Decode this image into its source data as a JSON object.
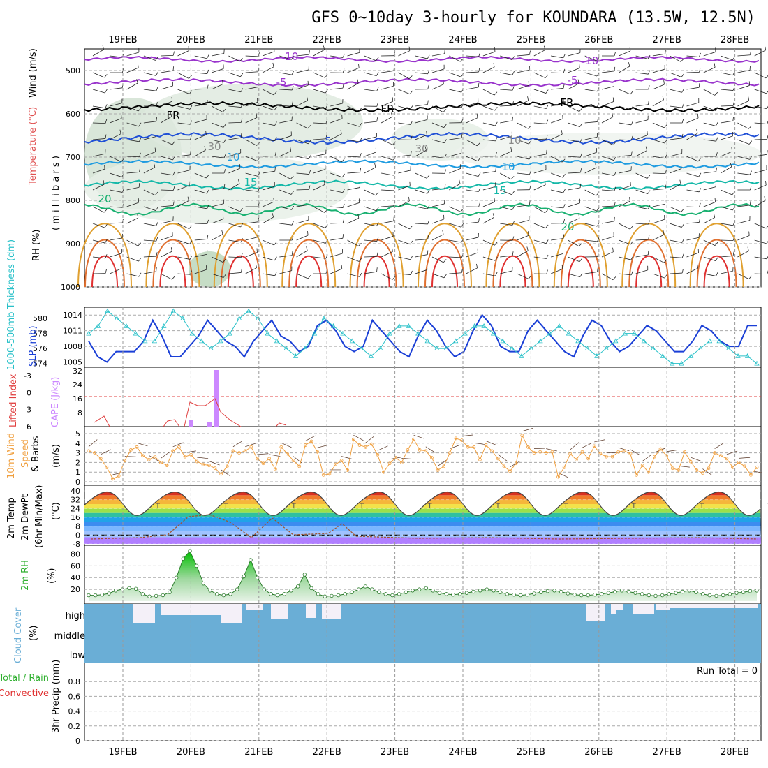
{
  "title": "GFS 0~10day 3-hourly for KOUNDARA (13.5W, 12.5N)",
  "dates": [
    "19FEB",
    "20FEB",
    "21FEB",
    "22FEB",
    "23FEB",
    "24FEB",
    "25FEB",
    "26FEB",
    "27FEB",
    "28FEB"
  ],
  "colors": {
    "purple": "#9933cc",
    "black": "#000000",
    "blue": "#1f4fd6",
    "lightblue": "#1e9be0",
    "teal": "#14b8a8",
    "green": "#18b070",
    "gold": "#e0a030",
    "orange": "#e07030",
    "red": "#e03030",
    "slp": "#1a3fd6",
    "thickness": "#27c0c8",
    "lifted": "#e04040",
    "cape": "#cc88ff",
    "wind": "#f0a040",
    "rh": "#30b030",
    "cloud": "#6aaed6",
    "cloudbg": "#f4f0f8"
  },
  "panels": {
    "upper": {
      "ylabel_rh": "RH (%)",
      "ylabel_temp": "Temperature (°C)",
      "ylabel_wind": "Wind (m/s)",
      "ylabel_mb": "( m i l l i b a r s )",
      "ylim": [
        1000,
        450
      ],
      "yticks": [
        "500",
        "600",
        "700",
        "800",
        "900",
        "1000"
      ],
      "contour_labels": {
        "m10": "-10",
        "m5": "-5",
        "fr": "FR",
        "p5": "5",
        "p10": "10",
        "p15": "15",
        "p20": "20",
        "rh30": "30",
        "rh10": "10"
      }
    },
    "slp": {
      "ylabel_thick": "1000-500mb Thickness (dm)",
      "ylabel_slp": "SLP (mb)",
      "left_ticks": [
        "580",
        "578",
        "576",
        "574"
      ],
      "right_ticks": [
        "1014",
        "1011",
        "1008",
        "1005"
      ]
    },
    "cape": {
      "ylabel_li": "Lifted Index",
      "ylabel_cape": "CAPE (J/kg)",
      "left_ticks": [
        "-3",
        "0",
        "3",
        "6"
      ],
      "right_ticks": [
        "32",
        "24",
        "16",
        "8"
      ]
    },
    "wind10": {
      "ylabel_1": "10m Wind",
      "ylabel_2": "Speed",
      "ylabel_3": "& Barbs",
      "ylabel_unit": "(m/s)",
      "ylim": [
        0,
        5
      ],
      "yticks": [
        "0",
        "1",
        "2",
        "3",
        "4",
        "5"
      ]
    },
    "temp2m": {
      "ylabel_1": "2m Temp",
      "ylabel_2": "2m DewPt",
      "ylabel_3": "(6hr Min/Max)",
      "ylabel_unit": "(°C)",
      "ylim": [
        -8,
        40
      ],
      "yticks": [
        "-8",
        "0",
        "8",
        "16",
        "24",
        "32",
        "40"
      ]
    },
    "rh2m": {
      "ylabel": "2m RH",
      "ylabel_unit": "(%)",
      "ylim": [
        0,
        90
      ],
      "yticks": [
        "20",
        "40",
        "60",
        "80"
      ]
    },
    "cloud": {
      "ylabel": "Cloud Cover",
      "ylabel_unit": "(%)",
      "levels": [
        "high",
        "middle",
        "low"
      ]
    },
    "precip": {
      "ylabel_1": "Total / Rain",
      "ylabel_2": "Convective",
      "ylabel_3": "3hr Precip (mm)",
      "ylim": [
        0,
        1
      ],
      "yticks": [
        "0",
        "0.2",
        "0.4",
        "0.6",
        "0.8"
      ],
      "run_total": "Run Total = 0"
    }
  },
  "chart_data": {
    "type": "line",
    "x_dates": [
      "19FEB",
      "20FEB",
      "21FEB",
      "22FEB",
      "23FEB",
      "24FEB",
      "25FEB",
      "26FEB",
      "27FEB",
      "28FEB"
    ],
    "wind10_speed": [
      3.2,
      3.0,
      2.4,
      1.5,
      0.3,
      0.6,
      2.2,
      3.3,
      3.6,
      2.7,
      2.3,
      2.6,
      2.0,
      1.7,
      3.2,
      3.6,
      2.6,
      2.8,
      2.1,
      1.8,
      1.7,
      1.4,
      0.8,
      1.6,
      3.2,
      3.0,
      3.2,
      3.6,
      2.4,
      1.9,
      2.4,
      1.3,
      3.6,
      2.9,
      2.2,
      1.6,
      3.8,
      4.2,
      3.1,
      0.7,
      0.8,
      1.8,
      2.2,
      1.2,
      4.4,
      3.8,
      3.6,
      3.9,
      2.8,
      1.0,
      1.9,
      2.5,
      2.0,
      3.3,
      4.4,
      3.3,
      3.2,
      2.5,
      1.2,
      1.6,
      3.0,
      4.5,
      4.3,
      3.6,
      3.6,
      2.3,
      3.8,
      3.2,
      2.4,
      1.6,
      1.1,
      1.9,
      4.8,
      3.6,
      3.0,
      3.1,
      3.0,
      3.1,
      0.5,
      1.5,
      2.9,
      2.3,
      3.1,
      2.4,
      3.7,
      2.9,
      2.6,
      2.6,
      3.1,
      3.2,
      2.9,
      0.7,
      1.7,
      1.0,
      2.6,
      3.4,
      2.7,
      1.4,
      1.2,
      3.1,
      2.1,
      1.2,
      0.9,
      1.4,
      3.0,
      2.7,
      2.4,
      1.5,
      2.0,
      1.6,
      0.7,
      1.5
    ],
    "rh2m": [
      10,
      10,
      11,
      13,
      18,
      20,
      22,
      21,
      12,
      8,
      9,
      10,
      15,
      40,
      72,
      85,
      60,
      30,
      18,
      12,
      10,
      12,
      20,
      42,
      70,
      40,
      20,
      12,
      10,
      12,
      18,
      25,
      45,
      22,
      12,
      8,
      9,
      10,
      12,
      15,
      20,
      25,
      20,
      15,
      12,
      10,
      12,
      15,
      18,
      20,
      22,
      18,
      14,
      12,
      11,
      12,
      14,
      16,
      18,
      20,
      18,
      15,
      12,
      11,
      10,
      11,
      13,
      15,
      17,
      18,
      16,
      13,
      11,
      10,
      10,
      11,
      12,
      14,
      16,
      18,
      16,
      14,
      12,
      10,
      9,
      10,
      12,
      14,
      16,
      18,
      15,
      12,
      10,
      9,
      10,
      12,
      14,
      15,
      17,
      18
    ],
    "slp": [
      1009,
      1006,
      1005,
      1007,
      1007,
      1007,
      1009,
      1013,
      1010,
      1006,
      1006,
      1008,
      1010,
      1013,
      1011,
      1009,
      1008,
      1006,
      1009,
      1011,
      1013,
      1010,
      1009,
      1007,
      1008,
      1012,
      1013,
      1011,
      1008,
      1007,
      1008,
      1013,
      1011,
      1009,
      1007,
      1006,
      1010,
      1013,
      1011,
      1008,
      1006,
      1007,
      1011,
      1014,
      1012,
      1008,
      1007,
      1007,
      1011,
      1013,
      1011,
      1009,
      1007,
      1006,
      1010,
      1013,
      1012,
      1009,
      1007,
      1008,
      1010,
      1012,
      1011,
      1009,
      1007,
      1007,
      1009,
      1012,
      1011,
      1009,
      1008,
      1008,
      1012,
      1012
    ],
    "thickness": [
      578,
      579,
      581,
      580,
      579,
      578,
      577,
      577,
      579,
      581,
      580,
      578,
      577,
      576,
      577,
      578,
      580,
      581,
      580,
      578,
      577,
      576,
      575,
      576,
      578,
      580,
      579,
      578,
      577,
      576,
      575,
      576,
      578,
      579,
      579,
      578,
      577,
      576,
      576,
      577,
      578,
      579,
      579,
      578,
      577,
      576,
      575,
      576,
      577,
      578,
      579,
      578,
      577,
      576,
      575,
      576,
      577,
      578,
      578,
      577,
      576,
      575,
      574,
      574,
      575,
      576,
      577,
      577,
      576,
      575,
      575,
      574
    ],
    "cape_bars": [
      {
        "x": "20FEB",
        "value": 5
      },
      {
        "x": "20FEB",
        "value": 3
      },
      {
        "x": "20FEB",
        "value": 32
      }
    ],
    "precip_total": 0
  }
}
